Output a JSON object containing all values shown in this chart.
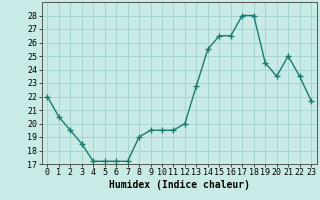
{
  "x": [
    0,
    1,
    2,
    3,
    4,
    5,
    6,
    7,
    8,
    9,
    10,
    11,
    12,
    13,
    14,
    15,
    16,
    17,
    18,
    19,
    20,
    21,
    22,
    23
  ],
  "y": [
    22,
    20.5,
    19.5,
    18.5,
    17.2,
    17.2,
    17.2,
    17.2,
    19,
    19.5,
    19.5,
    19.5,
    20,
    22.8,
    25.5,
    26.5,
    26.5,
    28,
    28,
    24.5,
    23.5,
    25,
    23.5,
    21.7
  ],
  "line_color": "#1a7a6e",
  "marker": "+",
  "marker_size": 4,
  "bg_color": "#c8ebe8",
  "grid_color": "#a8d5d0",
  "xlabel": "Humidex (Indice chaleur)",
  "ylim": [
    17,
    29
  ],
  "xlim": [
    -0.5,
    23.5
  ],
  "yticks": [
    17,
    18,
    19,
    20,
    21,
    22,
    23,
    24,
    25,
    26,
    27,
    28
  ],
  "xticks": [
    0,
    1,
    2,
    3,
    4,
    5,
    6,
    7,
    8,
    9,
    10,
    11,
    12,
    13,
    14,
    15,
    16,
    17,
    18,
    19,
    20,
    21,
    22,
    23
  ],
  "xlabel_fontsize": 7,
  "tick_fontsize": 6,
  "linewidth": 1.0
}
